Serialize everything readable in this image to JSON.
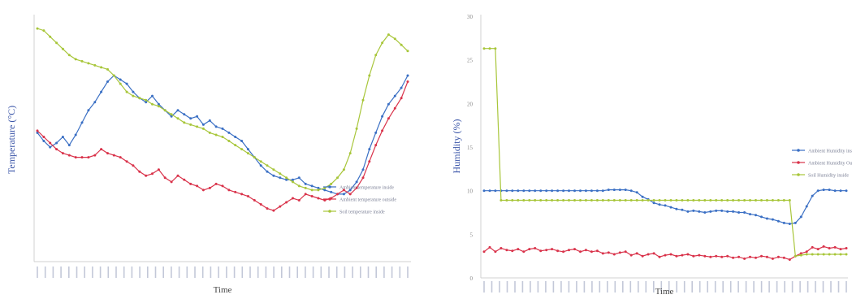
{
  "chart_data": [
    {
      "type": "line",
      "xlabel": "Time",
      "ylabel": "Temperature (°C)",
      "grid": false,
      "legend_position": "right",
      "x_tick_count": 48,
      "series": [
        {
          "name": "Ambient temperature inside",
          "color": "#3a6fc4",
          "values": [
            22.8,
            22.4,
            22.1,
            22.3,
            22.6,
            22.2,
            22.7,
            23.3,
            23.9,
            24.3,
            24.8,
            25.3,
            25.6,
            25.4,
            25.2,
            24.8,
            24.5,
            24.3,
            24.6,
            24.2,
            23.9,
            23.6,
            23.9,
            23.7,
            23.5,
            23.6,
            23.2,
            23.4,
            23.1,
            23.0,
            22.8,
            22.6,
            22.4,
            22.0,
            21.6,
            21.2,
            20.9,
            20.7,
            20.6,
            20.5,
            20.5,
            20.6,
            20.3,
            20.2,
            20.1,
            20.0,
            19.9,
            19.8,
            19.8,
            20.0,
            20.4,
            21.0,
            22.0,
            22.8,
            23.6,
            24.2,
            24.6,
            25.0,
            25.6
          ]
        },
        {
          "name": "Ambient temperature outside",
          "color": "#d9324a",
          "values": [
            22.9,
            22.6,
            22.3,
            22.0,
            21.8,
            21.7,
            21.6,
            21.6,
            21.6,
            21.7,
            22.0,
            21.8,
            21.7,
            21.6,
            21.4,
            21.2,
            20.9,
            20.7,
            20.8,
            21.0,
            20.6,
            20.4,
            20.7,
            20.5,
            20.3,
            20.2,
            20.0,
            20.1,
            20.3,
            20.2,
            20.0,
            19.9,
            19.8,
            19.7,
            19.5,
            19.3,
            19.1,
            19.0,
            19.2,
            19.4,
            19.6,
            19.5,
            19.8,
            19.7,
            19.6,
            19.5,
            19.6,
            19.8,
            20.0,
            19.8,
            20.1,
            20.6,
            21.4,
            22.2,
            22.9,
            23.5,
            24.0,
            24.5,
            25.3
          ]
        },
        {
          "name": "Soil temperature inside",
          "color": "#a8c63a",
          "values": [
            27.9,
            27.8,
            27.5,
            27.2,
            26.9,
            26.6,
            26.4,
            26.3,
            26.2,
            26.1,
            26.0,
            25.9,
            25.6,
            25.2,
            24.8,
            24.6,
            24.5,
            24.4,
            24.2,
            24.1,
            23.9,
            23.7,
            23.5,
            23.3,
            23.2,
            23.1,
            23.0,
            22.8,
            22.7,
            22.6,
            22.4,
            22.2,
            22.0,
            21.8,
            21.6,
            21.4,
            21.2,
            21.0,
            20.8,
            20.6,
            20.4,
            20.2,
            20.1,
            20.0,
            20.0,
            20.1,
            20.3,
            20.6,
            21.0,
            21.8,
            23.0,
            24.4,
            25.6,
            26.6,
            27.2,
            27.6,
            27.4,
            27.1,
            26.8
          ]
        }
      ]
    },
    {
      "type": "line",
      "xlabel": "Time",
      "ylabel": "Humidity (%)",
      "ylim": [
        0,
        30
      ],
      "y_ticks": [
        "0",
        "5",
        "10",
        "15",
        "20",
        "25",
        "30"
      ],
      "grid": false,
      "legend_position": "right",
      "x_tick_count": 48,
      "series": [
        {
          "name": "Ambient Humidity inside",
          "color": "#3a6fc4",
          "values": [
            10.0,
            10.0,
            10.0,
            10.0,
            10.0,
            10.0,
            10.0,
            10.0,
            10.0,
            10.0,
            10.0,
            10.0,
            10.0,
            10.0,
            10.0,
            10.0,
            10.0,
            10.0,
            10.0,
            10.0,
            10.0,
            10.0,
            10.1,
            10.1,
            10.1,
            10.1,
            10.0,
            9.8,
            9.3,
            9.0,
            8.6,
            8.4,
            8.3,
            8.1,
            7.9,
            7.8,
            7.6,
            7.7,
            7.6,
            7.5,
            7.6,
            7.7,
            7.7,
            7.6,
            7.6,
            7.5,
            7.5,
            7.3,
            7.2,
            7.0,
            6.8,
            6.7,
            6.5,
            6.3,
            6.2,
            6.3,
            7.0,
            8.2,
            9.4,
            10.0,
            10.1,
            10.1,
            10.0,
            10.0,
            10.0
          ]
        },
        {
          "name": "Ambient Humidity Outside",
          "color": "#d9324a",
          "values": [
            3.0,
            3.5,
            3.0,
            3.4,
            3.2,
            3.1,
            3.3,
            3.0,
            3.3,
            3.4,
            3.1,
            3.2,
            3.3,
            3.1,
            3.0,
            3.2,
            3.3,
            3.0,
            3.2,
            3.0,
            3.1,
            2.8,
            2.9,
            2.7,
            2.9,
            3.0,
            2.6,
            2.8,
            2.5,
            2.7,
            2.8,
            2.4,
            2.6,
            2.7,
            2.5,
            2.6,
            2.7,
            2.5,
            2.6,
            2.5,
            2.4,
            2.5,
            2.4,
            2.5,
            2.3,
            2.4,
            2.2,
            2.4,
            2.3,
            2.5,
            2.4,
            2.2,
            2.4,
            2.3,
            2.1,
            2.5,
            2.8,
            3.0,
            3.5,
            3.3,
            3.6,
            3.4,
            3.5,
            3.3,
            3.4
          ]
        },
        {
          "name": "Soil Humidity inside",
          "color": "#a8c63a",
          "values": [
            26.3,
            26.3,
            26.3,
            8.9,
            8.9,
            8.9,
            8.9,
            8.9,
            8.9,
            8.9,
            8.9,
            8.9,
            8.9,
            8.9,
            8.9,
            8.9,
            8.9,
            8.9,
            8.9,
            8.9,
            8.9,
            8.9,
            8.9,
            8.9,
            8.9,
            8.9,
            8.9,
            8.9,
            8.9,
            8.9,
            8.9,
            8.9,
            8.9,
            8.9,
            8.9,
            8.9,
            8.9,
            8.9,
            8.9,
            8.9,
            8.9,
            8.9,
            8.9,
            8.9,
            8.9,
            8.9,
            8.9,
            8.9,
            8.9,
            8.9,
            8.9,
            8.9,
            8.9,
            8.9,
            8.9,
            2.5,
            2.6,
            2.7,
            2.7,
            2.7,
            2.7,
            2.7,
            2.7,
            2.7,
            2.7
          ]
        }
      ]
    }
  ]
}
